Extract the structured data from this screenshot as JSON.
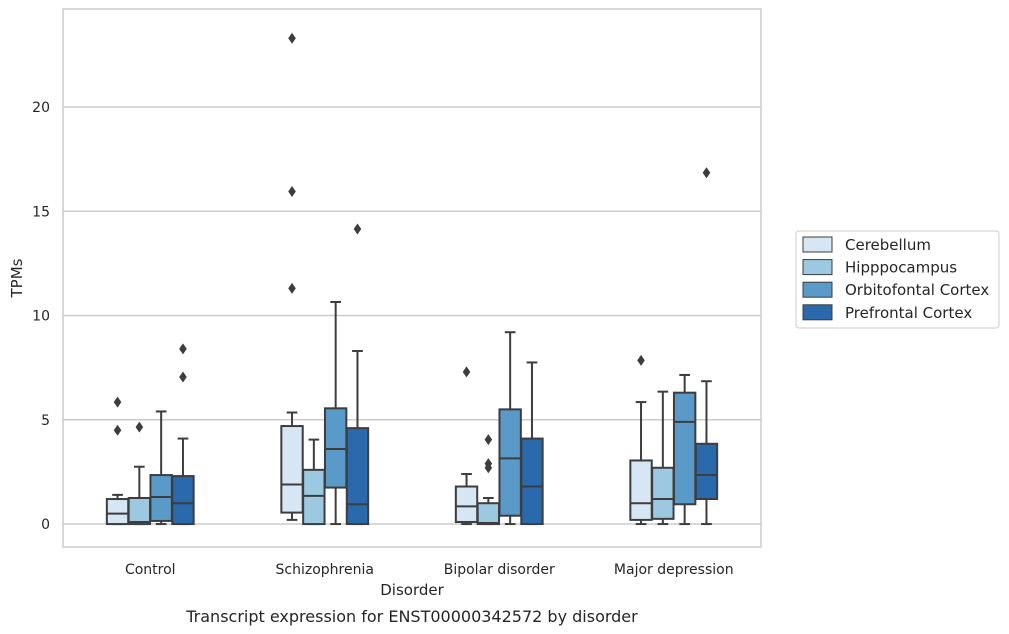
{
  "chart_data": {
    "type": "box",
    "caption": "Transcript expression for ENST00000342572 by disorder",
    "xlabel": "Disorder",
    "ylabel": "TPMs",
    "ylim": [
      -1.1,
      24.7
    ],
    "yticks": [
      0,
      5,
      10,
      15,
      20
    ],
    "grid": "horizontal",
    "legend_position": "right",
    "categories": [
      "Control",
      "Schizophrenia",
      "Bipolar disorder",
      "Major depression"
    ],
    "series": [
      {
        "name": "Cerebellum",
        "color": "#d6e6f4",
        "boxes": [
          {
            "whisker_low": 0,
            "q1": 0,
            "median": 0.5,
            "q3": 1.2,
            "whisker_high": 1.4,
            "outliers": [
              4.5,
              5.85
            ]
          },
          {
            "whisker_low": 0.2,
            "q1": 0.55,
            "median": 1.9,
            "q3": 4.7,
            "whisker_high": 5.35,
            "outliers": [
              11.3,
              15.95,
              23.3
            ]
          },
          {
            "whisker_low": 0,
            "q1": 0.1,
            "median": 0.85,
            "q3": 1.8,
            "whisker_high": 2.4,
            "outliers": [
              7.3
            ]
          },
          {
            "whisker_low": 0,
            "q1": 0.2,
            "median": 1.0,
            "q3": 3.05,
            "whisker_high": 5.85,
            "outliers": [
              7.85
            ]
          }
        ]
      },
      {
        "name": "Hipppocampus",
        "color": "#9cc9e1",
        "boxes": [
          {
            "whisker_low": 0,
            "q1": 0,
            "median": 0.1,
            "q3": 1.25,
            "whisker_high": 2.75,
            "outliers": [
              4.65
            ]
          },
          {
            "whisker_low": 0,
            "q1": 0,
            "median": 1.35,
            "q3": 2.6,
            "whisker_high": 4.05,
            "outliers": []
          },
          {
            "whisker_low": 0,
            "q1": 0,
            "median": 0.05,
            "q3": 1.0,
            "whisker_high": 1.25,
            "outliers": [
              2.7,
              2.9,
              4.05
            ]
          },
          {
            "whisker_low": 0,
            "q1": 0.25,
            "median": 1.2,
            "q3": 2.7,
            "whisker_high": 6.35,
            "outliers": []
          }
        ]
      },
      {
        "name": "Orbitofontal Cortex",
        "color": "#5a9ac8",
        "boxes": [
          {
            "whisker_low": 0,
            "q1": 0.15,
            "median": 1.3,
            "q3": 2.35,
            "whisker_high": 5.4,
            "outliers": []
          },
          {
            "whisker_low": 0,
            "q1": 1.75,
            "median": 3.6,
            "q3": 5.55,
            "whisker_high": 10.65,
            "outliers": []
          },
          {
            "whisker_low": 0,
            "q1": 0.4,
            "median": 3.15,
            "q3": 5.5,
            "whisker_high": 9.2,
            "outliers": []
          },
          {
            "whisker_low": 0,
            "q1": 0.95,
            "median": 4.9,
            "q3": 6.3,
            "whisker_high": 7.15,
            "outliers": []
          }
        ]
      },
      {
        "name": "Prefrontal Cortex",
        "color": "#2a69ab",
        "boxes": [
          {
            "whisker_low": 0,
            "q1": 0,
            "median": 1.0,
            "q3": 2.3,
            "whisker_high": 4.1,
            "outliers": [
              7.05,
              8.4
            ]
          },
          {
            "whisker_low": 0,
            "q1": 0,
            "median": 0.95,
            "q3": 4.6,
            "whisker_high": 8.3,
            "outliers": [
              14.15
            ]
          },
          {
            "whisker_low": 0,
            "q1": 0,
            "median": 1.8,
            "q3": 4.1,
            "whisker_high": 7.75,
            "outliers": []
          },
          {
            "whisker_low": 0,
            "q1": 1.2,
            "median": 2.35,
            "q3": 3.85,
            "whisker_high": 6.85,
            "outliers": [
              16.85
            ]
          }
        ]
      }
    ]
  }
}
